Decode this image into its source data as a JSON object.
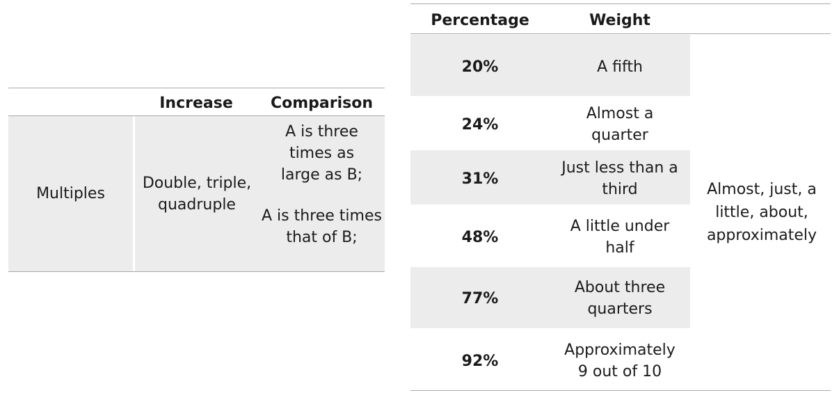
{
  "left_table": {
    "headers": {
      "increase": "Increase",
      "comparison": "Comparison"
    },
    "row": {
      "category": "Multiples",
      "increase": "Double, triple, quadruple",
      "comparison_1": "A is three times as large as B;",
      "comparison_2": "A is three times that of B;"
    }
  },
  "right_table": {
    "headers": {
      "percentage": "Percentage",
      "weight": "Weight"
    },
    "rows": [
      {
        "percentage": "20%",
        "weight": "A fifth"
      },
      {
        "percentage": "24%",
        "weight": "Almost a quarter"
      },
      {
        "percentage": "31%",
        "weight": "Just less than a third"
      },
      {
        "percentage": "48%",
        "weight": "A little under half"
      },
      {
        "percentage": "77%",
        "weight": "About three quarters"
      },
      {
        "percentage": "92%",
        "weight": "Approximately 9 out of 10"
      }
    ],
    "qualifier": "Almost, just, a little, about, approximately"
  }
}
